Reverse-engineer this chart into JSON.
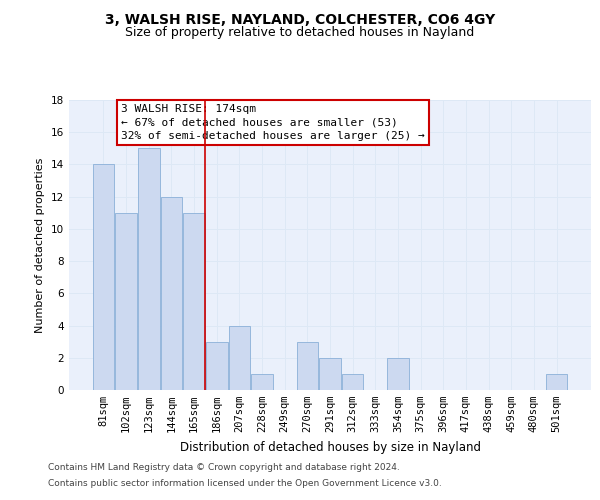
{
  "title1": "3, WALSH RISE, NAYLAND, COLCHESTER, CO6 4GY",
  "title2": "Size of property relative to detached houses in Nayland",
  "xlabel": "Distribution of detached houses by size in Nayland",
  "ylabel": "Number of detached properties",
  "categories": [
    "81sqm",
    "102sqm",
    "123sqm",
    "144sqm",
    "165sqm",
    "186sqm",
    "207sqm",
    "228sqm",
    "249sqm",
    "270sqm",
    "291sqm",
    "312sqm",
    "333sqm",
    "354sqm",
    "375sqm",
    "396sqm",
    "417sqm",
    "438sqm",
    "459sqm",
    "480sqm",
    "501sqm"
  ],
  "values": [
    14,
    11,
    15,
    12,
    11,
    3,
    4,
    1,
    0,
    3,
    2,
    1,
    0,
    2,
    0,
    0,
    0,
    0,
    0,
    0,
    1
  ],
  "bar_color": "#ccd9f0",
  "bar_edge_color": "#8ab0d8",
  "vline_x": 4.5,
  "vline_color": "#cc0000",
  "annotation_line1": "3 WALSH RISE: 174sqm",
  "annotation_line2": "← 67% of detached houses are smaller (53)",
  "annotation_line3": "32% of semi-detached houses are larger (25) →",
  "annotation_box_color": "#ffffff",
  "annotation_box_edge": "#cc0000",
  "ylim": [
    0,
    18
  ],
  "yticks": [
    0,
    2,
    4,
    6,
    8,
    10,
    12,
    14,
    16,
    18
  ],
  "grid_color": "#dde8f5",
  "background_color": "#eaf0fb",
  "footnote1": "Contains HM Land Registry data © Crown copyright and database right 2024.",
  "footnote2": "Contains public sector information licensed under the Open Government Licence v3.0.",
  "title1_fontsize": 10,
  "title2_fontsize": 9,
  "xlabel_fontsize": 8.5,
  "ylabel_fontsize": 8,
  "tick_fontsize": 7.5,
  "annotation_fontsize": 8,
  "footnote_fontsize": 6.5
}
